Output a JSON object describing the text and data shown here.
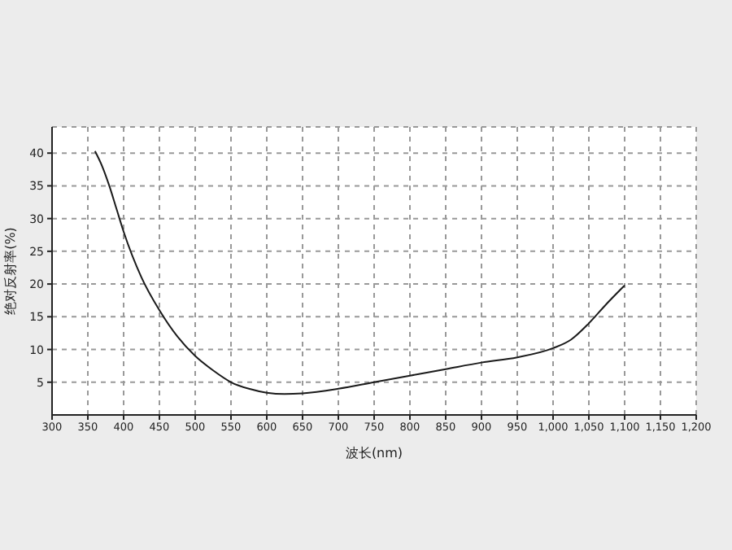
{
  "chart_data": {
    "type": "line",
    "xlabel": "波长(nm)",
    "ylabel": "绝对反射率(%)",
    "x": [
      360,
      370,
      380,
      390,
      400,
      425,
      450,
      475,
      500,
      525,
      550,
      575,
      600,
      625,
      650,
      700,
      750,
      800,
      850,
      900,
      950,
      1000,
      1025,
      1050,
      1075,
      1100
    ],
    "series": [
      {
        "color": "#1a1a1a",
        "values": [
          40.3,
          38,
          35,
          31.5,
          28,
          21,
          16,
          12,
          9,
          6.8,
          5,
          4,
          3.4,
          3.2,
          3.3,
          4,
          5,
          6,
          7,
          8,
          8.8,
          10.2,
          11.5,
          14,
          17,
          19.8
        ]
      }
    ],
    "xlim": [
      300,
      1200
    ],
    "xticks": [
      300,
      350,
      400,
      450,
      500,
      550,
      600,
      650,
      700,
      750,
      800,
      850,
      900,
      950,
      {
        "value": 1000,
        "label": "1,000"
      },
      {
        "value": 1050,
        "label": "1,050"
      },
      {
        "value": 1100,
        "label": "1,100"
      },
      {
        "value": 1150,
        "label": "1,150"
      },
      {
        "value": 1200,
        "label": "1,200"
      }
    ],
    "ylim": [
      0,
      44
    ],
    "yticks": [
      5,
      10,
      15,
      20,
      25,
      30,
      35,
      40
    ],
    "grid": true,
    "marker": "none",
    "line_style": "solid"
  }
}
